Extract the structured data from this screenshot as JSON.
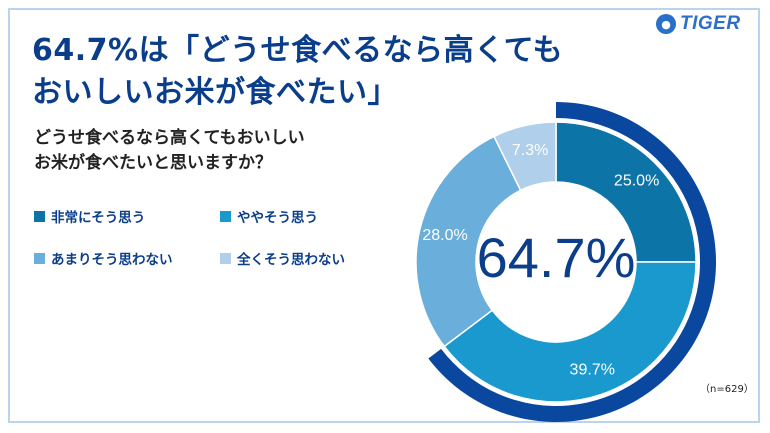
{
  "title_lines": [
    "64.7%は「どうせ食べるなら高くても",
    "おいしいお米が食べたい」"
  ],
  "question_lines": [
    "どうせ食べるなら高くてもおいしい",
    "お米が食べたいと思いますか？"
  ],
  "logo": {
    "text": "TIGER",
    "icon": "tiger-face-icon",
    "color": "#2a6fc9"
  },
  "note": "（n=629）",
  "colors": {
    "title": "#0b3e8a",
    "ring": "#0a48a0"
  },
  "chart_data": {
    "type": "pie",
    "donut": true,
    "center_label": "64.7%",
    "highlight_total": 64.7,
    "categories": [
      "非常にそう思う",
      "ややそう思う",
      "あまりそう思わない",
      "全くそう思わない"
    ],
    "values": [
      25.0,
      39.7,
      28.0,
      7.3
    ],
    "labels": [
      "25.0%",
      "39.7%",
      "28.0%",
      "7.3%"
    ],
    "colors": [
      "#0d74a8",
      "#1a99cf",
      "#6aaedc",
      "#afcfea"
    ],
    "legend": [
      {
        "label": "非常にそう思う",
        "color": "#0d74a8"
      },
      {
        "label": "ややそう思う",
        "color": "#1a99cf"
      },
      {
        "label": "あまりそう思わない",
        "color": "#6aaedc"
      },
      {
        "label": "全くそう思わない",
        "color": "#afcfea"
      }
    ]
  }
}
